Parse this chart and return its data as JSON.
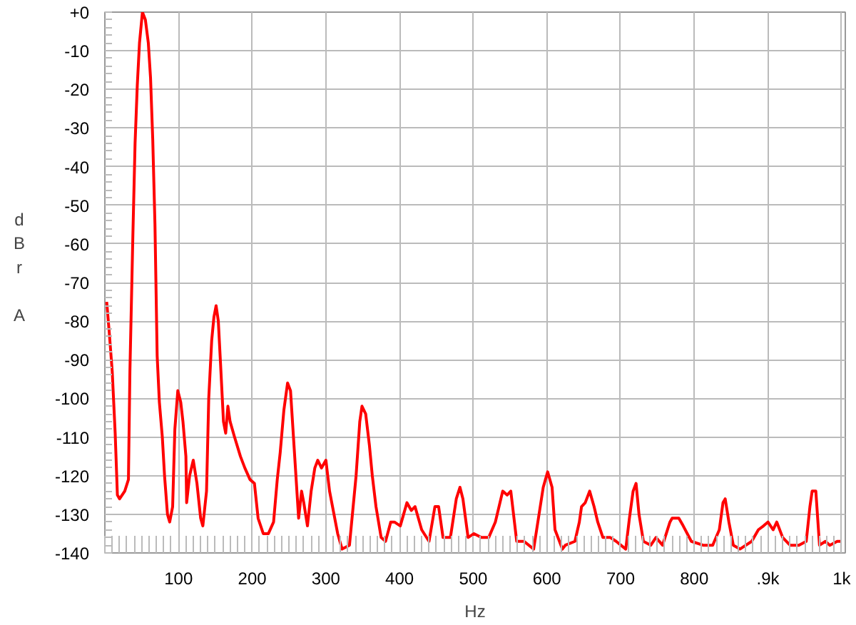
{
  "chart_data": {
    "type": "line",
    "xlabel": "Hz",
    "ylabel": "dBr A",
    "x": [
      2.5,
      6,
      10,
      14,
      17,
      20,
      27,
      32,
      34,
      38,
      41,
      44,
      47,
      51,
      55,
      59,
      62,
      65,
      68,
      71,
      74,
      78,
      81,
      85,
      88,
      92,
      95,
      99,
      103,
      106,
      110,
      111,
      115,
      120,
      125,
      130,
      133,
      138,
      141,
      145,
      148,
      151,
      154,
      157,
      161,
      164,
      167,
      170,
      176,
      184,
      190,
      197,
      203,
      208,
      215,
      222,
      229,
      234,
      238,
      243,
      248,
      252,
      257,
      261,
      263,
      267,
      270,
      275,
      280,
      285,
      289,
      294,
      300,
      305,
      311,
      316,
      322,
      332,
      341,
      346,
      349,
      354,
      359,
      363,
      368,
      375,
      381,
      388,
      393,
      401,
      410,
      416,
      421,
      430,
      440,
      448,
      453,
      459,
      469,
      477,
      482,
      486,
      493,
      501,
      511,
      521,
      530,
      540,
      546,
      551,
      559,
      569,
      582,
      595,
      601,
      607,
      611,
      621,
      625,
      638,
      644,
      647,
      652,
      658,
      664,
      669,
      676,
      686,
      694,
      707,
      712,
      717,
      721,
      725,
      731,
      741,
      748,
      757,
      767,
      770,
      779,
      785,
      796,
      812,
      825,
      834,
      839,
      842,
      847,
      853,
      862,
      878,
      887,
      894,
      900,
      907,
      912,
      920,
      930,
      942,
      952,
      957,
      960,
      965,
      970,
      978,
      984,
      994,
      1000
    ],
    "series": [
      {
        "color": "#ff0000",
        "values": [
          -75,
          -83,
          -93,
          -109,
          -125,
          -126,
          -124,
          -121,
          -93,
          -58,
          -34,
          -19,
          -8,
          0,
          -2,
          -8,
          -17,
          -33,
          -55,
          -89,
          -101,
          -110,
          -120,
          -130,
          -132,
          -128,
          -108,
          -98,
          -101,
          -106,
          -115,
          -127,
          -120,
          -116,
          -122,
          -131,
          -133,
          -124,
          -100,
          -85,
          -79,
          -76,
          -80,
          -91,
          -106,
          -109,
          -102,
          -106,
          -110,
          -115,
          -118,
          -121,
          -122,
          -131,
          -135,
          -135,
          -132,
          -121,
          -114,
          -103,
          -96,
          -98,
          -113,
          -125,
          -131,
          -124,
          -127,
          -133,
          -124,
          -118,
          -116,
          -118,
          -116,
          -124,
          -130,
          -135,
          -139,
          -138,
          -120,
          -106,
          -102,
          -104,
          -112,
          -120,
          -128,
          -136,
          -137,
          -132,
          -132,
          -133,
          -127,
          -129,
          -128,
          -134,
          -137,
          -128,
          -128,
          -136,
          -136,
          -126,
          -123,
          -126,
          -136,
          -135,
          -136,
          -136,
          -132,
          -124,
          -125,
          -124,
          -137,
          -137,
          -139,
          -123,
          -119,
          -123,
          -134,
          -139,
          -138,
          -137,
          -132,
          -128,
          -127,
          -124,
          -128,
          -132,
          -136,
          -136,
          -137,
          -139,
          -131,
          -124,
          -122,
          -130,
          -137,
          -138,
          -136,
          -138,
          -132,
          -131,
          -131,
          -133,
          -137,
          -138,
          -138,
          -134,
          -127,
          -126,
          -132,
          -138,
          -139,
          -137,
          -134,
          -133,
          -132,
          -134,
          -132,
          -136,
          -138,
          -138,
          -137,
          -128,
          -124,
          -124,
          -138,
          -137,
          -138,
          -137,
          -137
        ]
      }
    ],
    "xlim": [
      0,
      1005
    ],
    "xticks": [
      100,
      200,
      300,
      400,
      500,
      600,
      700,
      800,
      {
        "value": 900,
        "label": ".9k"
      },
      {
        "value": 1000,
        "label": "1k"
      }
    ],
    "ylim": [
      -140,
      0
    ],
    "yticks": [
      {
        "value": 0,
        "label": "+0"
      },
      -10,
      -20,
      -30,
      -40,
      -50,
      -60,
      -70,
      -80,
      -90,
      -100,
      -110,
      -120,
      -130,
      -140
    ],
    "grid": true,
    "marker": "none",
    "line_style": "solid"
  }
}
